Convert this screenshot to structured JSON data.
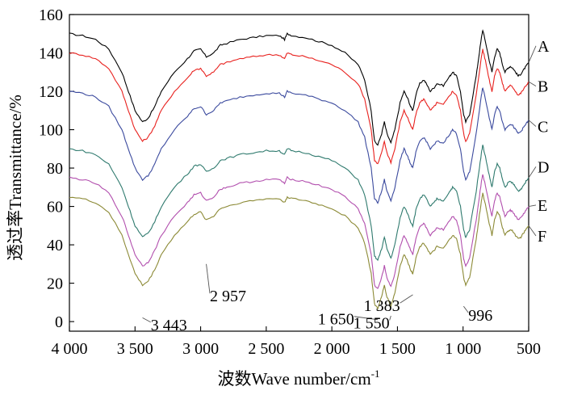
{
  "chart_data": {
    "type": "line",
    "xlabel": "波数Wave number/cm",
    "xlabel_sup": "-1",
    "ylabel": "透过率Transmittance/%",
    "xlim": [
      4000,
      500
    ],
    "ylim": [
      -5,
      160
    ],
    "x_reversed": true,
    "x_ticks": [
      4000,
      3500,
      3000,
      2500,
      2000,
      1500,
      1000,
      500
    ],
    "x_tick_labels": [
      "4 000",
      "3 500",
      "3 000",
      "2 500",
      "2 000",
      "1 500",
      "1 000",
      "500"
    ],
    "y_ticks": [
      0,
      20,
      40,
      60,
      80,
      100,
      120,
      140,
      160
    ],
    "y_tick_labels": [
      "0",
      "20",
      "40",
      "60",
      "80",
      "100",
      "120",
      "140",
      "160"
    ],
    "grid": false,
    "legend": "series labels at right end of curves",
    "series": [
      {
        "name": "A",
        "color": "#000000",
        "offset": 150,
        "label_y": 142
      },
      {
        "name": "B",
        "color": "#e8211e",
        "offset": 140,
        "label_y": 121
      },
      {
        "name": "C",
        "color": "#3b4a9e",
        "offset": 120,
        "label_y": 100
      },
      {
        "name": "D",
        "color": "#2f7a6e",
        "offset": 90,
        "label_y": 79
      },
      {
        "name": "E",
        "color": "#b24fae",
        "offset": 75,
        "label_y": 59
      },
      {
        "name": "F",
        "color": "#8c8a36",
        "offset": 65,
        "label_y": 43
      }
    ],
    "x": [
      4000,
      3900,
      3800,
      3700,
      3600,
      3550,
      3500,
      3443,
      3400,
      3350,
      3300,
      3200,
      3100,
      3050,
      3000,
      2957,
      2900,
      2850,
      2800,
      2700,
      2600,
      2500,
      2400,
      2360,
      2340,
      2300,
      2200,
      2100,
      2000,
      1900,
      1800,
      1750,
      1700,
      1675,
      1650,
      1620,
      1600,
      1580,
      1550,
      1520,
      1480,
      1450,
      1420,
      1400,
      1383,
      1360,
      1330,
      1300,
      1280,
      1250,
      1220,
      1200,
      1150,
      1100,
      1080,
      1050,
      1020,
      996,
      980,
      950,
      900,
      880,
      860,
      850,
      830,
      800,
      780,
      760,
      740,
      720,
      700,
      680,
      660,
      640,
      620,
      600,
      580,
      560,
      540,
      520,
      500
    ],
    "profile": [
      0,
      -1,
      -3,
      -8,
      -20,
      -30,
      -40,
      -46,
      -44,
      -38,
      -30,
      -20,
      -13,
      -9,
      -8,
      -12,
      -10,
      -6,
      -5,
      -3,
      -2,
      -1,
      -1,
      -3,
      0,
      -1,
      -2,
      -4,
      -6,
      -10,
      -16,
      -24,
      -40,
      -56,
      -58,
      -52,
      -46,
      -52,
      -57,
      -50,
      -36,
      -30,
      -34,
      -38,
      -40,
      -32,
      -26,
      -24,
      -26,
      -30,
      -28,
      -26,
      -27,
      -22,
      -20,
      -22,
      -30,
      -42,
      -46,
      -42,
      -22,
      -12,
      -2,
      2,
      -4,
      -14,
      -20,
      -12,
      -8,
      -10,
      -16,
      -20,
      -18,
      -17,
      -18,
      -20,
      -22,
      -21,
      -19,
      -17,
      -15
    ],
    "annotations": [
      {
        "text": "3 443",
        "x": 3443,
        "y": 2,
        "tx": 3380,
        "ty": -2
      },
      {
        "text": "2 957",
        "x": 2957,
        "y": 30,
        "tx": 2930,
        "ty": 13
      },
      {
        "text": "1 650",
        "x": 1650,
        "y": 1,
        "tx": 1830,
        "ty": 1
      },
      {
        "text": "1 550",
        "x": 1550,
        "y": 3,
        "tx": 1560,
        "ty": -1
      },
      {
        "text": "1 383",
        "x": 1383,
        "y": 14,
        "tx": 1480,
        "ty": 8
      },
      {
        "text": "996",
        "x": 996,
        "y": 8,
        "tx": 960,
        "ty": 3
      }
    ]
  }
}
